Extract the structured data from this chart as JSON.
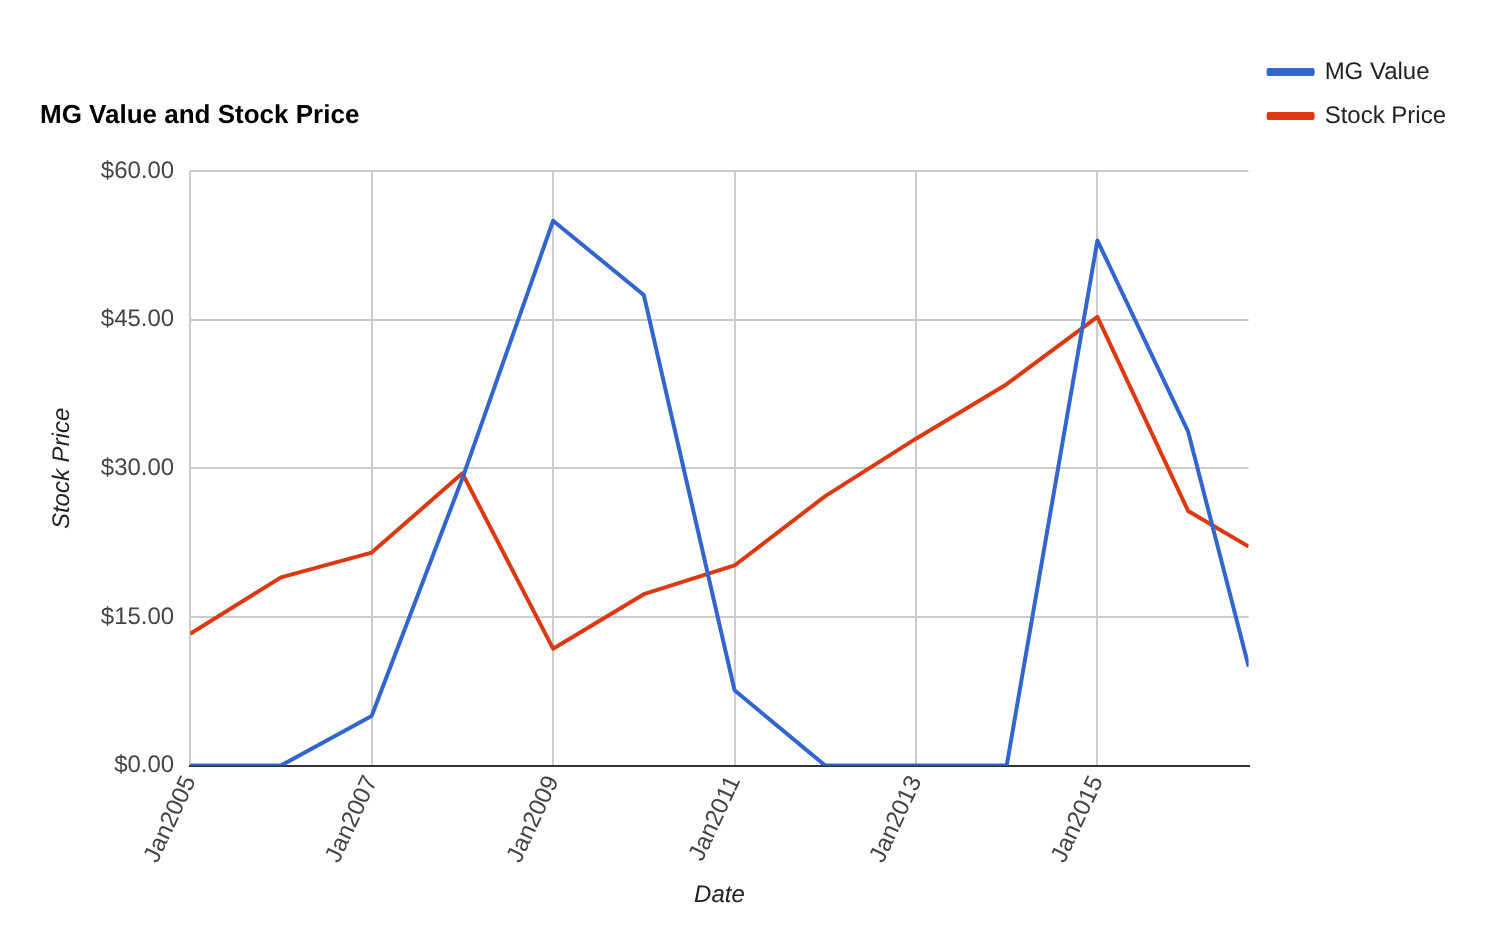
{
  "chart_data": {
    "type": "line",
    "title": "MG Value and Stock Price",
    "xlabel": "Date",
    "ylabel": "Stock Price",
    "x": [
      "2005",
      "2006",
      "2007",
      "2008",
      "2009",
      "2010",
      "2011",
      "2012",
      "2013",
      "2014",
      "2015",
      "2016",
      "2016-09"
    ],
    "series": [
      {
        "name": "MG Value",
        "color": "#3366cc",
        "values": [
          0,
          0,
          5,
          29,
          55,
          47.5,
          7.6,
          0,
          0,
          0,
          53,
          33.7,
          10
        ]
      },
      {
        "name": "Stock Price",
        "color": "#dc3912",
        "values": [
          13.3,
          19,
          21.5,
          29.5,
          11.8,
          17.3,
          20.2,
          27.2,
          33,
          38.5,
          45.3,
          25.7,
          22.1
        ]
      }
    ],
    "xlim": [
      "2005",
      "2016-09"
    ],
    "xticks": [
      {
        "value": "2005",
        "label": "Jan2005"
      },
      {
        "value": "2007",
        "label": "Jan2007"
      },
      {
        "value": "2009",
        "label": "Jan2009"
      },
      {
        "value": "2011",
        "label": "Jan2011"
      },
      {
        "value": "2013",
        "label": "Jan2013"
      },
      {
        "value": "2015",
        "label": "Jan2015"
      }
    ],
    "ylim": [
      0,
      60
    ],
    "yticks": [
      {
        "value": 0,
        "label": "$0.00"
      },
      {
        "value": 15,
        "label": "$15.00"
      },
      {
        "value": 30,
        "label": "$30.00"
      },
      {
        "value": 45,
        "label": "$45.00"
      },
      {
        "value": 60,
        "label": "$60.00"
      }
    ],
    "grid": true,
    "legend": "right",
    "marker": "none",
    "line_style": "solid"
  }
}
